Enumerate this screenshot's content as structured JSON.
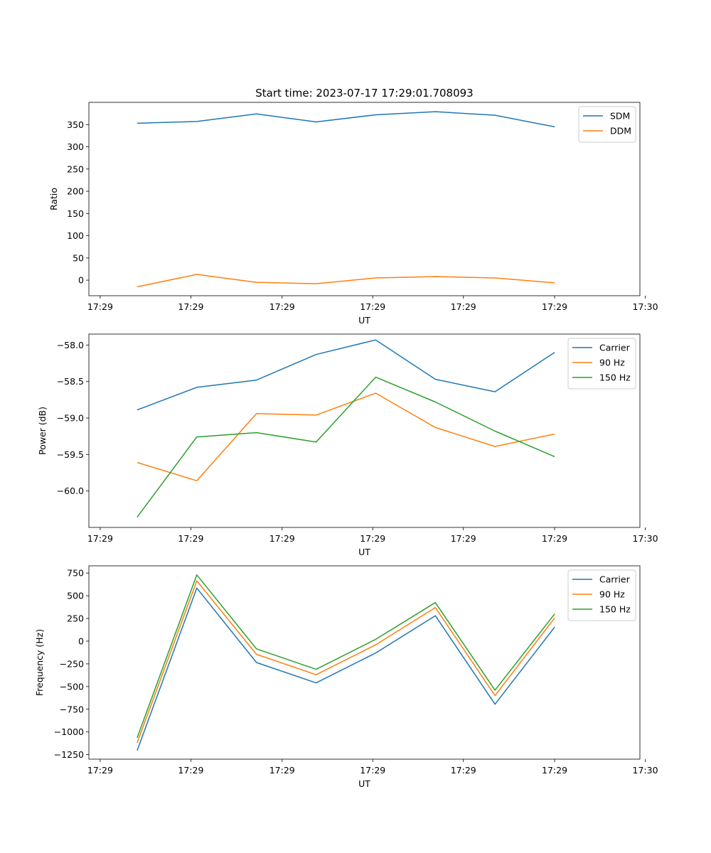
{
  "title": "Start time: 2023-07-17 17:29:01.708093",
  "colors": {
    "blue": "#1f77b4",
    "orange": "#ff7f0e",
    "green": "#2ca02c"
  },
  "chart_data": [
    {
      "type": "line",
      "name": "ratio",
      "title": "Start time: 2023-07-17 17:29:01.708093",
      "xlabel": "UT",
      "ylabel": "Ratio",
      "x": [
        1,
        2,
        3,
        4,
        5,
        6,
        7,
        8
      ],
      "xlim": [
        0.19,
        9.43
      ],
      "xticks": [
        0.38,
        1.9,
        3.43,
        4.95,
        6.47,
        8.0,
        9.52
      ],
      "xtick_labels": [
        "17:29",
        "17:29",
        "17:29",
        "17:29",
        "17:29",
        "17:29",
        "17:30"
      ],
      "ylim": [
        -35,
        400
      ],
      "yticks": [
        0,
        50,
        100,
        150,
        200,
        250,
        300,
        350
      ],
      "ytick_labels": [
        "0",
        "50",
        "100",
        "150",
        "200",
        "250",
        "300",
        "350"
      ],
      "legend_position": "top-right",
      "series": [
        {
          "name": "SDM",
          "color": "#1f77b4",
          "values": [
            353,
            357,
            374,
            356,
            372,
            379,
            371,
            345
          ]
        },
        {
          "name": "DDM",
          "color": "#ff7f0e",
          "values": [
            -15,
            13,
            -5,
            -8,
            5,
            8,
            5,
            -6
          ]
        }
      ]
    },
    {
      "type": "line",
      "name": "power",
      "title": "",
      "xlabel": "UT",
      "ylabel": "Power (dB)",
      "x": [
        1,
        2,
        3,
        4,
        5,
        6,
        7,
        8
      ],
      "xlim": [
        0.19,
        9.43
      ],
      "xticks": [
        0.38,
        1.9,
        3.43,
        4.95,
        6.47,
        8.0,
        9.52
      ],
      "xtick_labels": [
        "17:29",
        "17:29",
        "17:29",
        "17:29",
        "17:29",
        "17:29",
        "17:30"
      ],
      "ylim": [
        -60.5,
        -57.85
      ],
      "yticks": [
        -60.0,
        -59.5,
        -59.0,
        -58.5,
        -58.0
      ],
      "ytick_labels": [
        "−60.0",
        "−59.5",
        "−59.0",
        "−58.5",
        "−58.0"
      ],
      "legend_position": "top-right",
      "series": [
        {
          "name": "Carrier",
          "color": "#1f77b4",
          "values": [
            -58.89,
            -58.58,
            -58.48,
            -58.13,
            -57.93,
            -58.47,
            -58.64,
            -58.1
          ]
        },
        {
          "name": "90 Hz",
          "color": "#ff7f0e",
          "values": [
            -59.61,
            -59.86,
            -58.94,
            -58.96,
            -58.66,
            -59.13,
            -59.39,
            -59.22
          ]
        },
        {
          "name": "150 Hz",
          "color": "#2ca02c",
          "values": [
            -60.36,
            -59.26,
            -59.2,
            -59.33,
            -58.44,
            -58.78,
            -59.18,
            -59.53
          ]
        }
      ]
    },
    {
      "type": "line",
      "name": "frequency",
      "title": "",
      "xlabel": "UT",
      "ylabel": "Frequency (Hz)",
      "x": [
        1,
        2,
        3,
        4,
        5,
        6,
        7,
        8
      ],
      "xlim": [
        0.19,
        9.43
      ],
      "xticks": [
        0.38,
        1.9,
        3.43,
        4.95,
        6.47,
        8.0,
        9.52
      ],
      "xtick_labels": [
        "17:29",
        "17:29",
        "17:29",
        "17:29",
        "17:29",
        "17:29",
        "17:30"
      ],
      "ylim": [
        -1300,
        830
      ],
      "yticks": [
        -1250,
        -1000,
        -750,
        -500,
        -250,
        0,
        250,
        500,
        750
      ],
      "ytick_labels": [
        "−1250",
        "−1000",
        "−750",
        "−500",
        "−250",
        "0",
        "250",
        "500",
        "750"
      ],
      "legend_position": "top-right",
      "series": [
        {
          "name": "Carrier",
          "color": "#1f77b4",
          "values": [
            -1205,
            585,
            -235,
            -460,
            -130,
            280,
            -695,
            155
          ]
        },
        {
          "name": "90 Hz",
          "color": "#ff7f0e",
          "values": [
            -1120,
            665,
            -145,
            -370,
            -40,
            370,
            -600,
            255
          ]
        },
        {
          "name": "150 Hz",
          "color": "#2ca02c",
          "values": [
            -1065,
            730,
            -85,
            -310,
            20,
            425,
            -540,
            300
          ]
        }
      ]
    }
  ]
}
